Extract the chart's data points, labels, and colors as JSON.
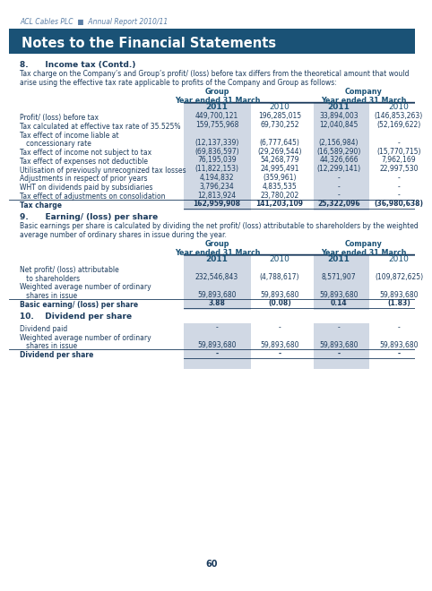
{
  "header_text": "ACL Cables PLC  ■  Annual Report 2010/11",
  "title": "Notes to the Financial Statements",
  "title_bg": "#1a5276",
  "title_color": "#ffffff",
  "section8_heading": "8.      Income tax (Contd.)",
  "section8_body": "Tax charge on the Company’s and Group’s profit/ (loss) before tax differs from the theoretical amount that would\narise using the effective tax rate applicable to profits of the Company and Group as follows:",
  "table_header_group": "Group\nYear ended 31 March",
  "table_header_company": "Company\nYear ended 31 March",
  "table1_rows": [
    [
      "Profit/ (loss) before tax",
      "449,700,121",
      "196,285,015",
      "33,894,003",
      "(146,853,263)",
      false
    ],
    [
      "Tax calculated at effective tax rate of 35.525%",
      "159,755,968",
      "69,730,252",
      "12,040,845",
      "(52,169,622)",
      false
    ],
    [
      "Tax effect of income liable at",
      "",
      "",
      "",
      "",
      false
    ],
    [
      "   concessionary rate",
      "(12,137,339)",
      "(6,777,645)",
      "(2,156,984)",
      "-",
      false
    ],
    [
      "Tax effect of income not subject to tax",
      "(69,836,597)",
      "(29,269,544)",
      "(16,589,290)",
      "(15,770,715)",
      false
    ],
    [
      "Tax effect of expenses not deductible",
      "76,195,039",
      "54,268,779",
      "44,326,666",
      "7,962,169",
      false
    ],
    [
      "Utilisation of previously unrecognized tax losses",
      "(11,822,153)",
      "24,995,491",
      "(12,299,141)",
      "22,997,530",
      false
    ],
    [
      "Adjustments in respect of prior years",
      "4,194,832",
      "(359,961)",
      "-",
      "-",
      false
    ],
    [
      "WHT on dividends paid by subsidiaries",
      "3,796,234",
      "4,835,535",
      "-",
      "-",
      false
    ],
    [
      "Tax effect of adjustments on consolidation",
      "12,813,924",
      "23,780,202",
      "-",
      "-",
      false
    ],
    [
      "Tax charge",
      "162,959,908",
      "141,203,109",
      "25,322,096",
      "(36,980,638)",
      true
    ]
  ],
  "section9_heading": "9.      Earning/ (loss) per share",
  "section9_body": "Basic earnings per share is calculated by dividing the net profit/ (loss) attributable to shareholders by the weighted\naverage number of ordinary shares in issue during the year.",
  "table2_rows": [
    [
      "Net profit/ (loss) attributable",
      "",
      "",
      "",
      "",
      false
    ],
    [
      "   to shareholders",
      "232,546,843",
      "(4,788,617)",
      "8,571,907",
      "(109,872,625)",
      false
    ],
    [
      "Weighted average number of ordinary",
      "",
      "",
      "",
      "",
      false
    ],
    [
      "   shares in issue",
      "59,893,680",
      "59,893,680",
      "59,893,680",
      "59,893,680",
      false
    ],
    [
      "Basic earning/ (loss) per share",
      "3.88",
      "(0.08)",
      "0.14",
      "(1.83)",
      true
    ]
  ],
  "section10_heading": "10.    Dividend per share",
  "table3_rows": [
    [
      "Dividend paid",
      "-",
      "-",
      "-",
      "-",
      false
    ],
    [
      "Weighted average number of ordinary",
      "",
      "",
      "",
      "",
      false
    ],
    [
      "   shares in issue",
      "59,893,680",
      "59,893,680",
      "59,893,680",
      "59,893,680",
      false
    ],
    [
      "Dividend per share",
      "-",
      "-",
      "-",
      "-",
      true
    ]
  ],
  "page_number": "60",
  "col_highlight": "#d0d8e4",
  "header_color": "#1a5276",
  "text_color": "#1a3a5c"
}
